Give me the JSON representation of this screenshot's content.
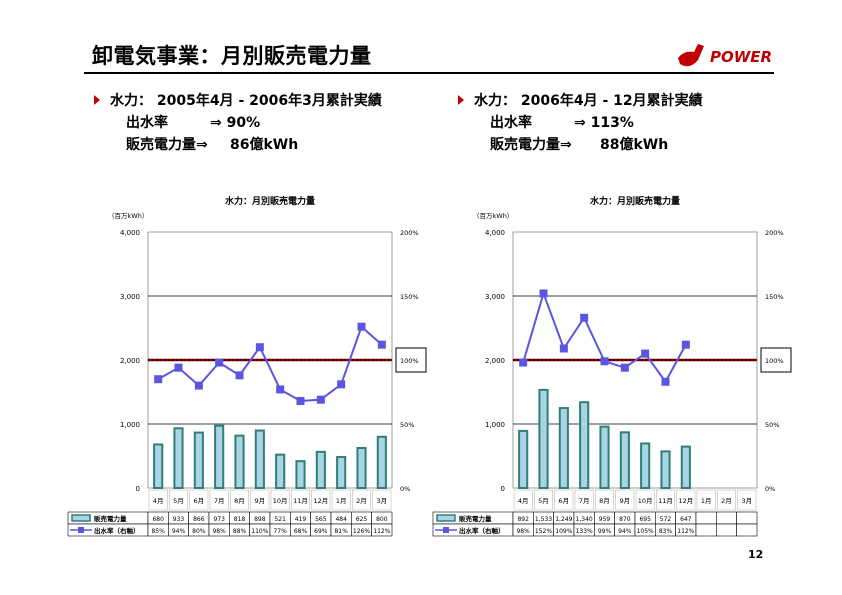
{
  "page": {
    "title": "卸電気事業：月別販売電力量",
    "logo_text": "POWER",
    "page_number": "12"
  },
  "left_summary": {
    "heading": "水力： 2005年4月 - 2006年3月累計実績",
    "line1_label": "出水率",
    "line1_value": "⇒  90%",
    "line2_label": "販売電力量⇒",
    "line2_value": "86億kWh"
  },
  "right_summary": {
    "heading": "水力： 2006年4月 - 12月累計実績",
    "line1_label": "出水率",
    "line1_value": "⇒  113%",
    "line2_label": "販売電力量⇒",
    "line2_value": "88億kWh"
  },
  "colors": {
    "bar_fill": "#a9d4e8",
    "bar_edge": "#2f7f72",
    "line": "#5b55e0",
    "ref_line": "#8b0000",
    "accent": "#c00000"
  },
  "chart_data": [
    {
      "type": "bar",
      "title": "水力：月別販売電力量",
      "ylabel": "（百万kWh）",
      "categories": [
        "4月",
        "5月",
        "6月",
        "7月",
        "8月",
        "9月",
        "10月",
        "11月",
        "12月",
        "1月",
        "2月",
        "3月"
      ],
      "ylim": [
        0,
        4000
      ],
      "y2lim": [
        0,
        200
      ],
      "yticks": [
        "0",
        "1,000",
        "2,000",
        "3,000",
        "4,000"
      ],
      "y2ticks": [
        "0%",
        "50%",
        "100%",
        "150%",
        "200%"
      ],
      "reference_line": 100,
      "reference_label": "100%",
      "grid": true,
      "series": [
        {
          "name": "販売電力量",
          "axis": "left",
          "values": [
            680,
            933,
            866,
            973,
            818,
            898,
            521,
            419,
            565,
            484,
            625,
            800
          ],
          "labels": [
            "680",
            "933",
            "866",
            "973",
            "818",
            "898",
            "521",
            "419",
            "565",
            "484",
            "625",
            "800"
          ]
        },
        {
          "name": "出水率（右軸）",
          "axis": "right",
          "values": [
            85,
            94,
            80,
            98,
            88,
            110,
            77,
            68,
            69,
            81,
            126,
            112
          ],
          "labels": [
            "85%",
            "94%",
            "80%",
            "98%",
            "88%",
            "110%",
            "77%",
            "68%",
            "69%",
            "81%",
            "126%",
            "112%"
          ]
        }
      ]
    },
    {
      "type": "bar",
      "title": "水力：月別販売電力量",
      "ylabel": "（百万kWh）",
      "categories": [
        "4月",
        "5月",
        "6月",
        "7月",
        "8月",
        "9月",
        "10月",
        "11月",
        "12月",
        "1月",
        "2月",
        "3月"
      ],
      "ylim": [
        0,
        4000
      ],
      "y2lim": [
        0,
        200
      ],
      "yticks": [
        "0",
        "1,000",
        "2,000",
        "3,000",
        "4,000"
      ],
      "y2ticks": [
        "0%",
        "50%",
        "100%",
        "150%",
        "200%"
      ],
      "reference_line": 100,
      "reference_label": "100%",
      "grid": true,
      "series": [
        {
          "name": "販売電力量",
          "axis": "left",
          "values": [
            892,
            1533,
            1249,
            1340,
            959,
            870,
            695,
            572,
            647,
            null,
            null,
            null
          ],
          "labels": [
            "892",
            "1,533",
            "1,249",
            "1,340",
            "959",
            "870",
            "695",
            "572",
            "647",
            "",
            "",
            ""
          ]
        },
        {
          "name": "出水率（右軸）",
          "axis": "right",
          "values": [
            98,
            152,
            109,
            133,
            99,
            94,
            105,
            83,
            112,
            null,
            null,
            null
          ],
          "labels": [
            "98%",
            "152%",
            "109%",
            "133%",
            "99%",
            "94%",
            "105%",
            "83%",
            "112%",
            "",
            "",
            ""
          ]
        }
      ]
    }
  ]
}
